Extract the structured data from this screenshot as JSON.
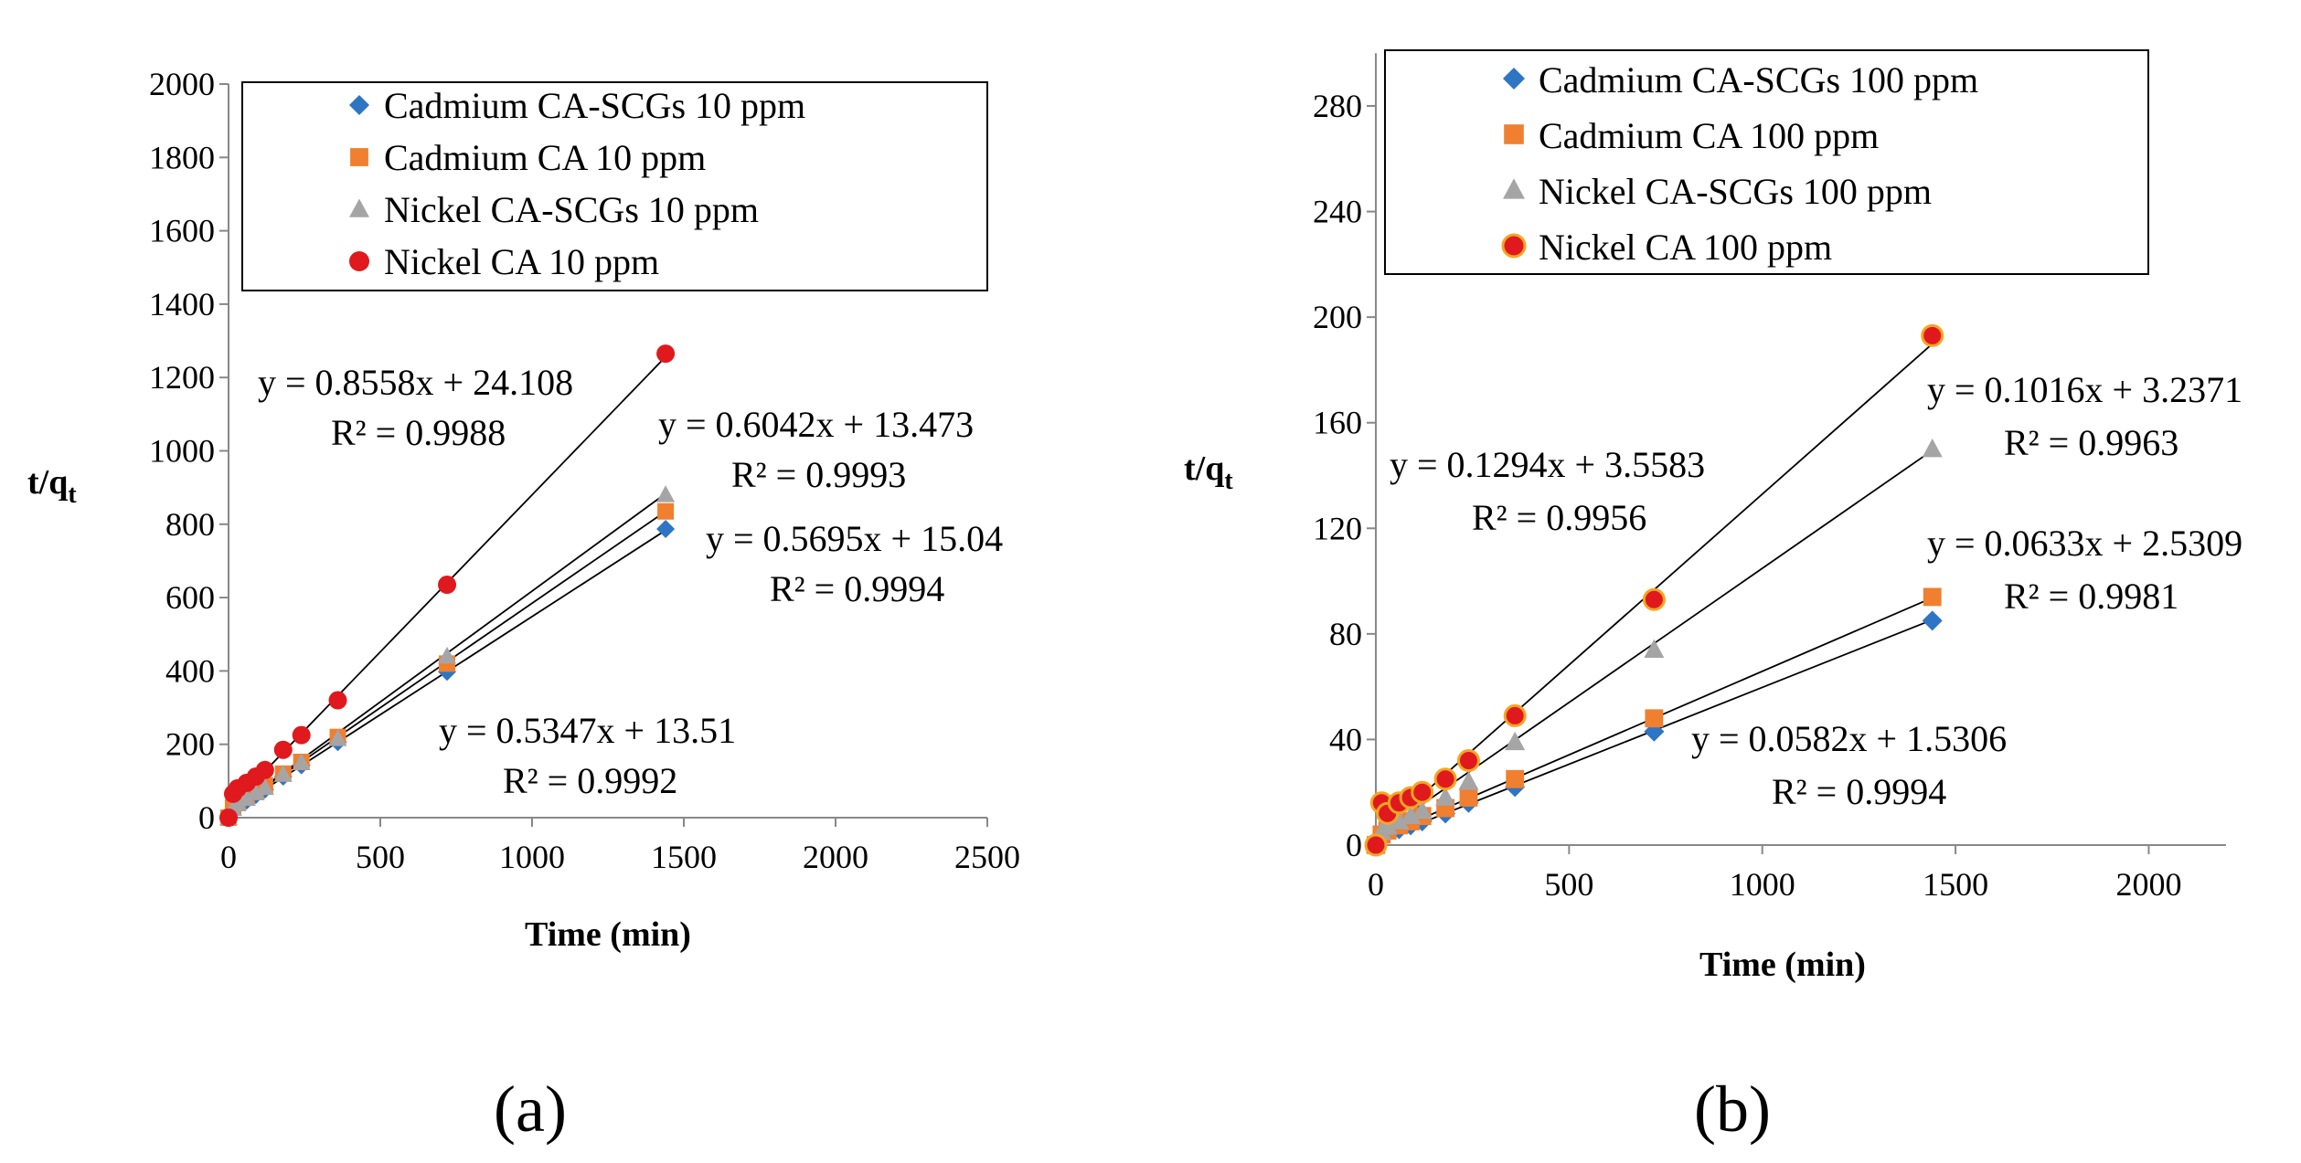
{
  "chart_data": [
    {
      "type": "scatter",
      "panel_label": "(a)",
      "xlabel": "Time (min)",
      "ylabel_main": "t/q",
      "ylabel_sub": "t",
      "xlim": [
        0,
        2500
      ],
      "ylim": [
        0,
        2000
      ],
      "xticks": [
        0,
        500,
        1000,
        1500,
        2000,
        2500
      ],
      "yticks": [
        0,
        200,
        400,
        600,
        800,
        1000,
        1200,
        1400,
        1600,
        1800,
        2000
      ],
      "legend_position": "top-right",
      "series": [
        {
          "name": "Cadmium CA-SCGs 10 ppm",
          "marker": "diamond",
          "color": "#2E75C3",
          "x": [
            0,
            15,
            30,
            60,
            90,
            120,
            180,
            240,
            360,
            720,
            1440
          ],
          "y": [
            0,
            22,
            34,
            47,
            62,
            77,
            112,
            143,
            206,
            398,
            787
          ],
          "fit": {
            "slope": 0.5347,
            "intercept": 13.51,
            "equation": "y = 0.5347x + 13.51",
            "r2": "R² = 0.9992"
          }
        },
        {
          "name": "Cadmium CA 10 ppm",
          "marker": "square",
          "color": "#F07F2F",
          "x": [
            0,
            15,
            30,
            60,
            90,
            120,
            180,
            240,
            360,
            720,
            1440
          ],
          "y": [
            0,
            28,
            40,
            55,
            70,
            88,
            120,
            152,
            220,
            420,
            835
          ],
          "fit": {
            "slope": 0.5695,
            "intercept": 15.04,
            "equation": "y = 0.5695x + 15.04",
            "r2": "R² = 0.9994"
          }
        },
        {
          "name": "Nickel CA-SCGs 10 ppm",
          "marker": "triangle",
          "color": "#A5A5A5",
          "x": [
            0,
            15,
            30,
            60,
            90,
            120,
            180,
            240,
            360,
            720,
            1440
          ],
          "y": [
            0,
            25,
            38,
            52,
            68,
            82,
            118,
            150,
            215,
            440,
            880
          ],
          "fit": {
            "slope": 0.6042,
            "intercept": 13.473,
            "equation": "y = 0.6042x + 13.473",
            "r2": "R² = 0.9993"
          }
        },
        {
          "name": "Nickel CA 10 ppm",
          "marker": "circle",
          "color": "#E0191E",
          "x": [
            0,
            15,
            30,
            60,
            90,
            120,
            180,
            240,
            360,
            720,
            1440
          ],
          "y": [
            0,
            65,
            80,
            95,
            112,
            130,
            185,
            225,
            320,
            635,
            1265
          ],
          "fit": {
            "slope": 0.8558,
            "intercept": 24.108,
            "equation": "y = 0.8558x + 24.108",
            "r2": "R² = 0.9988"
          }
        }
      ]
    },
    {
      "type": "scatter",
      "panel_label": "(b)",
      "xlabel": "Time (min)",
      "ylabel_main": "t/q",
      "ylabel_sub": "t",
      "xlim": [
        0,
        2200
      ],
      "ylim": [
        0,
        300
      ],
      "xticks": [
        0,
        500,
        1000,
        1500,
        2000
      ],
      "yticks": [
        0,
        40,
        80,
        120,
        160,
        200,
        240,
        280
      ],
      "legend_position": "top-left",
      "series": [
        {
          "name": "Cadmium CA-SCGs 100 ppm",
          "marker": "diamond",
          "color": "#2E75C3",
          "x": [
            0,
            15,
            30,
            60,
            90,
            120,
            180,
            240,
            360,
            720,
            1440
          ],
          "y": [
            0,
            3,
            4.5,
            6,
            7.5,
            9,
            12,
            16,
            22,
            43,
            85
          ],
          "fit": {
            "slope": 0.0582,
            "intercept": 1.5306,
            "equation": "y = 0.0582x + 1.5306",
            "r2": "R² = 0.9994"
          }
        },
        {
          "name": "Cadmium CA 100 ppm",
          "marker": "square",
          "color": "#F07F2F",
          "x": [
            0,
            15,
            30,
            60,
            90,
            120,
            180,
            240,
            360,
            720,
            1440
          ],
          "y": [
            0,
            4,
            5.5,
            7.5,
            9,
            11,
            14,
            18,
            25,
            48,
            94
          ],
          "fit": {
            "slope": 0.0633,
            "intercept": 2.5309,
            "equation": "y = 0.0633x + 2.5309",
            "r2": "R² = 0.9981"
          }
        },
        {
          "name": "Nickel CA-SCGs  100 ppm",
          "marker": "triangle",
          "color": "#A5A5A5",
          "x": [
            0,
            15,
            30,
            60,
            90,
            120,
            180,
            240,
            360,
            720,
            1440
          ],
          "y": [
            0,
            5,
            7,
            9,
            11,
            13,
            18,
            24,
            39,
            74,
            150
          ],
          "fit": {
            "slope": 0.1016,
            "intercept": 3.2371,
            "equation": "y = 0.1016x + 3.2371",
            "r2": "R² = 0.9963"
          }
        },
        {
          "name": "Nickel CA 100 ppm",
          "marker": "circle-outlined",
          "color": "#E0191E",
          "edge_color": "#F5A623",
          "x": [
            0,
            15,
            30,
            60,
            90,
            120,
            180,
            240,
            360,
            720,
            1440
          ],
          "y": [
            0,
            16,
            12,
            16,
            18,
            20,
            25,
            32,
            49,
            93,
            193
          ],
          "fit": {
            "slope": 0.1294,
            "intercept": 3.5583,
            "equation": "y = 0.1294x + 3.5583",
            "r2": "R² = 0.9956"
          }
        }
      ]
    }
  ]
}
